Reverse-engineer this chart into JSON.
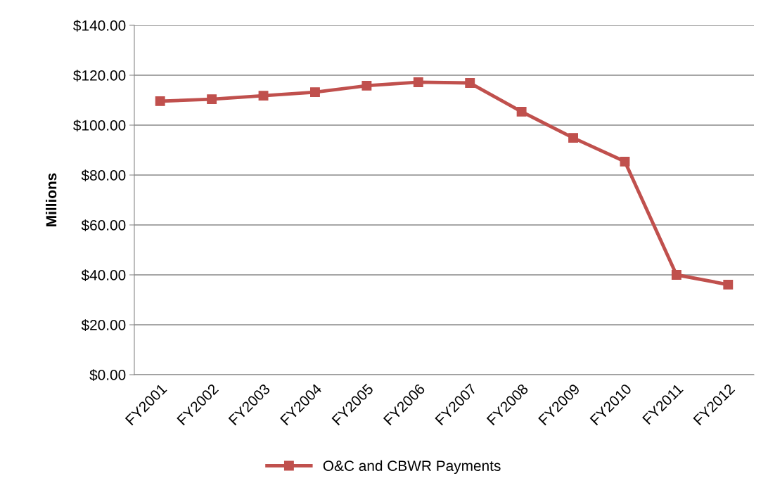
{
  "chart_data": {
    "type": "line",
    "ylabel": "Millions",
    "categories": [
      "FY2001",
      "FY2002",
      "FY2003",
      "FY2004",
      "FY2005",
      "FY2006",
      "FY2007",
      "FY2008",
      "FY2009",
      "FY2010",
      "FY2011",
      "FY2012"
    ],
    "series": [
      {
        "name": "O&C and CBWR Payments",
        "color": "#c0504d",
        "values": [
          109.6,
          110.4,
          111.8,
          113.2,
          115.8,
          117.2,
          116.9,
          105.4,
          94.9,
          85.4,
          40.0,
          36.1
        ]
      }
    ],
    "ylim": [
      0,
      140
    ],
    "yticks": [
      {
        "value": 0,
        "label": "$0.00"
      },
      {
        "value": 20,
        "label": "$20.00"
      },
      {
        "value": 40,
        "label": "$40.00"
      },
      {
        "value": 60,
        "label": "$60.00"
      },
      {
        "value": 80,
        "label": "$80.00"
      },
      {
        "value": 100,
        "label": "$100.00"
      },
      {
        "value": 120,
        "label": "$120.00"
      },
      {
        "value": 140,
        "label": "$140.00"
      }
    ],
    "grid": "y",
    "legend": "bottom",
    "marker": "square",
    "line_style": "solid"
  }
}
